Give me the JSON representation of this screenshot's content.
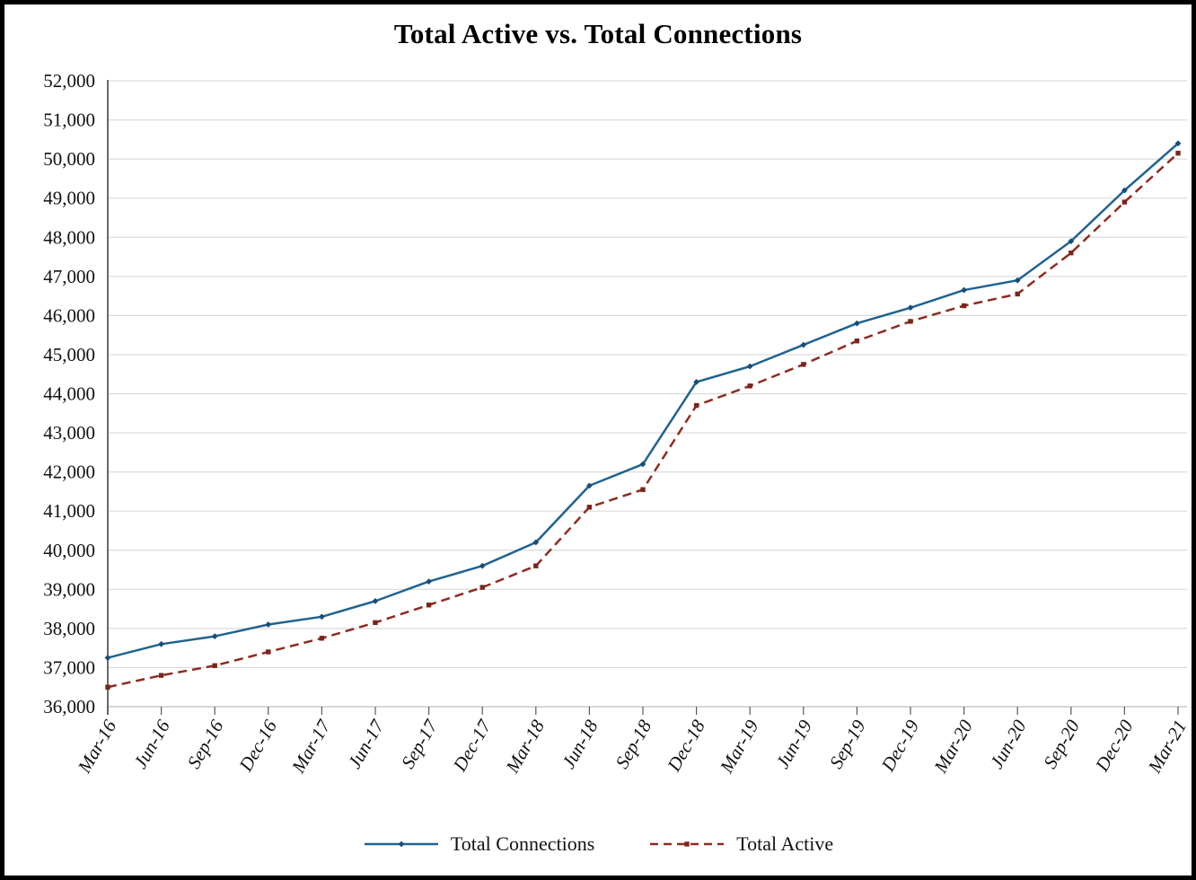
{
  "figure": {
    "title": "Total Active vs. Total Connections"
  },
  "legend": {
    "items": [
      {
        "label": "Total Connections"
      },
      {
        "label": "Total Active"
      }
    ]
  },
  "chart_data": {
    "type": "line",
    "title": "Total Active vs. Total Connections",
    "categories": [
      "Mar-16",
      "Jun-16",
      "Sep-16",
      "Dec-16",
      "Mar-17",
      "Jun-17",
      "Sep-17",
      "Dec-17",
      "Mar-18",
      "Jun-18",
      "Sep-18",
      "Dec-18",
      "Mar-19",
      "Jun-19",
      "Sep-19",
      "Dec-19",
      "Mar-20",
      "Jun-20",
      "Sep-20",
      "Dec-20",
      "Mar-21"
    ],
    "series": [
      {
        "name": "Total Connections",
        "color": "#1F6391",
        "marker_color": "#174E77",
        "line_style": "solid",
        "marker": "diamond",
        "values": [
          37250,
          37600,
          37800,
          38100,
          38300,
          38700,
          39200,
          39600,
          40200,
          41650,
          42200,
          44300,
          44700,
          45250,
          45800,
          46200,
          46650,
          46900,
          47900,
          49200,
          50400
        ]
      },
      {
        "name": "Total Active",
        "color": "#8E2B21",
        "marker_color": "#7C241C",
        "line_style": "dashed",
        "marker": "square",
        "values": [
          36500,
          36800,
          37050,
          37400,
          37750,
          38150,
          38600,
          39050,
          39600,
          41100,
          41550,
          43700,
          44200,
          44750,
          45350,
          45850,
          46250,
          46550,
          47600,
          48900,
          50150
        ]
      }
    ],
    "y_axis": {
      "min": 36000,
      "max": 52000,
      "step": 1000,
      "tick_labels": [
        "36,000",
        "37,000",
        "38,000",
        "39,000",
        "40,000",
        "41,000",
        "42,000",
        "43,000",
        "44,000",
        "45,000",
        "46,000",
        "47,000",
        "48,000",
        "49,000",
        "50,000",
        "51,000",
        "52,000"
      ]
    },
    "grid": true,
    "legend_position": "bottom",
    "axis_color": "#595959",
    "x_axis_line_color": "#BFBFBF",
    "gridline_color": "#DADADA"
  }
}
